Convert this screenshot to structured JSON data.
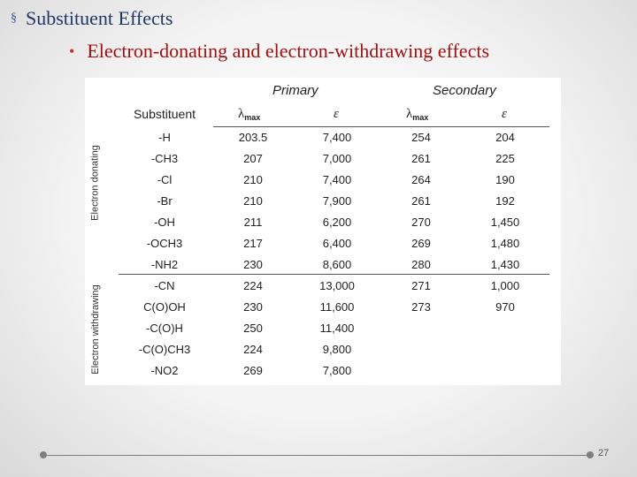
{
  "slide": {
    "title": "Substituent Effects",
    "title_bullet": "§",
    "subtitle": "Electron-donating and electron-withdrawing effects",
    "subtitle_bullet": "•",
    "page_number": "27"
  },
  "table": {
    "group_primary": "Primary",
    "group_secondary": "Secondary",
    "col_substituent": "Substituent",
    "col_lambda": "λ",
    "col_lambda_sub": "max",
    "col_epsilon": "ε",
    "side_donating": "Electron donating",
    "side_withdrawing": "Electron withdrawing",
    "rows": [
      [
        "-H",
        "203.5",
        "7,400",
        "254",
        "204"
      ],
      [
        "-CH3",
        "207",
        "7,000",
        "261",
        "225"
      ],
      [
        "-Cl",
        "210",
        "7,400",
        "264",
        "190"
      ],
      [
        "-Br",
        "210",
        "7,900",
        "261",
        "192"
      ],
      [
        "-OH",
        "211",
        "6,200",
        "270",
        "1,450"
      ],
      [
        "-OCH3",
        "217",
        "6,400",
        "269",
        "1,480"
      ],
      [
        "-NH2",
        "230",
        "8,600",
        "280",
        "1,430"
      ],
      [
        "-CN",
        "224",
        "13,000",
        "271",
        "1,000"
      ],
      [
        "C(O)OH",
        "230",
        "11,600",
        "273",
        "970"
      ],
      [
        "-C(O)H",
        "250",
        "11,400",
        "",
        ""
      ],
      [
        "-C(O)CH3",
        "224",
        "9,800",
        "",
        ""
      ],
      [
        "-NO2",
        "269",
        "7,800",
        "",
        ""
      ]
    ]
  }
}
